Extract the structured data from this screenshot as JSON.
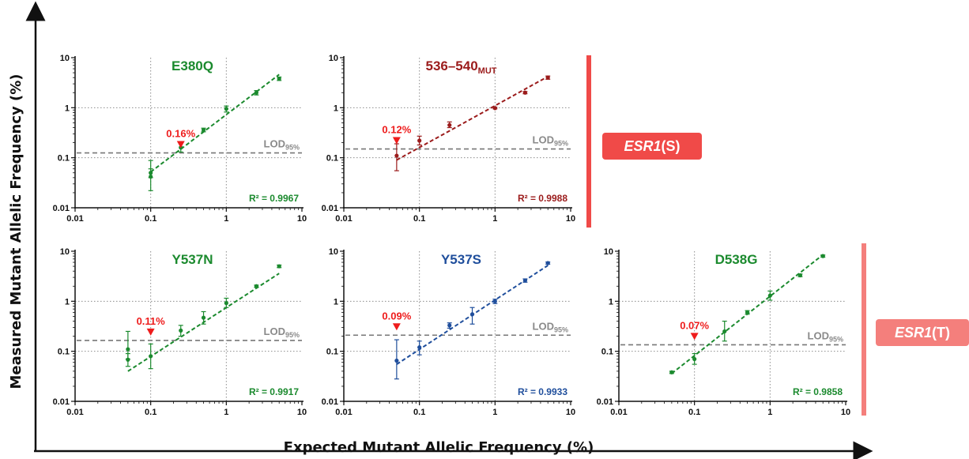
{
  "figure": {
    "y_axis_title": "Measured Mutant Allelic Frequency (%)",
    "x_axis_title": "Expected Mutant Allelic Frequency (%)",
    "groups": [
      {
        "gene": "ESR1",
        "suffix": "(S)",
        "color": "#f04a48"
      },
      {
        "gene": "ESR1",
        "suffix": "(T)",
        "color": "#f47f7c"
      }
    ]
  },
  "chart_data": [
    {
      "type": "scatter",
      "title": "E380Q",
      "title_sub": "",
      "color": "#1b8a2e",
      "xscale": "log",
      "yscale": "log",
      "xlim": [
        0.01,
        10
      ],
      "ylim": [
        0.01,
        10
      ],
      "xticks": [
        "0.01",
        "0.1",
        "1",
        "10"
      ],
      "yticks": [
        "0.01",
        "0.1",
        "1",
        "10"
      ],
      "grid": "dotted at 0.1 and 1",
      "points": [
        {
          "x": 0.1,
          "y": 0.042,
          "ylo": 0.022,
          "yhi": 0.06
        },
        {
          "x": 0.1,
          "y": 0.05,
          "ylo": 0.04,
          "yhi": 0.088
        },
        {
          "x": 0.25,
          "y": 0.16,
          "ylo": 0.13,
          "yhi": 0.2
        },
        {
          "x": 0.5,
          "y": 0.36,
          "ylo": 0.33,
          "yhi": 0.39
        },
        {
          "x": 1.0,
          "y": 0.95,
          "ylo": 0.82,
          "yhi": 1.08
        },
        {
          "x": 2.5,
          "y": 2.0,
          "ylo": 1.8,
          "yhi": 2.2
        },
        {
          "x": 5.0,
          "y": 3.8,
          "ylo": 3.5,
          "yhi": 4.1
        }
      ],
      "fit": [
        [
          0.1,
          0.052
        ],
        [
          5.0,
          4.6
        ]
      ],
      "lod": 0.125,
      "lod_label": "LOD",
      "lod_sub": "95%",
      "lod_annotation": "0.16%",
      "lod_x": 0.25,
      "r2": "R² = 0.9967"
    },
    {
      "type": "scatter",
      "title": "536–540",
      "title_sub": "MUT",
      "color": "#9b1b1b",
      "xscale": "log",
      "yscale": "log",
      "xlim": [
        0.01,
        10
      ],
      "ylim": [
        0.01,
        10
      ],
      "xticks": [
        "0.01",
        "0.1",
        "1",
        "10"
      ],
      "yticks": [
        "0.01",
        "0.1",
        "1",
        "10"
      ],
      "grid": "dotted at 0.1 and 1",
      "points": [
        {
          "x": 0.05,
          "y": 0.11,
          "ylo": 0.055,
          "yhi": 0.19
        },
        {
          "x": 0.1,
          "y": 0.22,
          "ylo": 0.18,
          "yhi": 0.27
        },
        {
          "x": 0.25,
          "y": 0.45,
          "ylo": 0.4,
          "yhi": 0.52
        },
        {
          "x": 1.0,
          "y": 0.98,
          "ylo": 0.95,
          "yhi": 1.02
        },
        {
          "x": 2.5,
          "y": 2.0,
          "ylo": 1.9,
          "yhi": 2.1
        },
        {
          "x": 5.0,
          "y": 4.0,
          "ylo": 3.7,
          "yhi": 4.3
        }
      ],
      "fit": [
        [
          0.05,
          0.09
        ],
        [
          5.0,
          4.2
        ]
      ],
      "lod": 0.15,
      "lod_label": "LOD",
      "lod_sub": "95%",
      "lod_annotation": "0.12%",
      "lod_x": 0.05,
      "r2": "R² = 0.9988"
    },
    {
      "type": "scatter",
      "title": "Y537N",
      "title_sub": "",
      "color": "#1b8a2e",
      "xscale": "log",
      "yscale": "log",
      "xlim": [
        0.01,
        10
      ],
      "ylim": [
        0.01,
        10
      ],
      "xticks": [
        "0.01",
        "0.1",
        "1",
        "10"
      ],
      "yticks": [
        "0.01",
        "0.1",
        "1",
        "10"
      ],
      "grid": "dotted at 0.1 and 1",
      "points": [
        {
          "x": 0.05,
          "y": 0.11,
          "ylo": 0.07,
          "yhi": 0.25
        },
        {
          "x": 0.05,
          "y": 0.068,
          "ylo": 0.05,
          "yhi": 0.09
        },
        {
          "x": 0.1,
          "y": 0.08,
          "ylo": 0.045,
          "yhi": 0.14
        },
        {
          "x": 0.25,
          "y": 0.26,
          "ylo": 0.2,
          "yhi": 0.33
        },
        {
          "x": 0.5,
          "y": 0.47,
          "ylo": 0.35,
          "yhi": 0.62
        },
        {
          "x": 1.0,
          "y": 0.92,
          "ylo": 0.75,
          "yhi": 1.15
        },
        {
          "x": 2.5,
          "y": 2.0,
          "ylo": 1.9,
          "yhi": 2.1
        },
        {
          "x": 5.0,
          "y": 5.0,
          "ylo": 4.7,
          "yhi": 5.3
        }
      ],
      "fit": [
        [
          0.05,
          0.04
        ],
        [
          5.0,
          3.6
        ]
      ],
      "lod": 0.165,
      "lod_label": "LOD",
      "lod_sub": "95%",
      "lod_annotation": "0.11%",
      "lod_x": 0.1,
      "r2": "R² = 0.9917"
    },
    {
      "type": "scatter",
      "title": "Y537S",
      "title_sub": "",
      "color": "#1f4e9c",
      "xscale": "log",
      "yscale": "log",
      "xlim": [
        0.01,
        10
      ],
      "ylim": [
        0.01,
        10
      ],
      "xticks": [
        "0.01",
        "0.1",
        "1",
        "10"
      ],
      "yticks": [
        "0.01",
        "0.1",
        "1",
        "10"
      ],
      "grid": "dotted at 0.1 and 1",
      "points": [
        {
          "x": 0.05,
          "y": 0.065,
          "ylo": 0.028,
          "yhi": 0.17
        },
        {
          "x": 0.1,
          "y": 0.12,
          "ylo": 0.085,
          "yhi": 0.16
        },
        {
          "x": 0.25,
          "y": 0.33,
          "ylo": 0.29,
          "yhi": 0.37
        },
        {
          "x": 0.5,
          "y": 0.55,
          "ylo": 0.35,
          "yhi": 0.75
        },
        {
          "x": 1.0,
          "y": 1.0,
          "ylo": 0.9,
          "yhi": 1.1
        },
        {
          "x": 2.5,
          "y": 2.6,
          "ylo": 2.4,
          "yhi": 2.8
        },
        {
          "x": 5.0,
          "y": 5.8,
          "ylo": 5.5,
          "yhi": 6.1
        }
      ],
      "fit": [
        [
          0.05,
          0.055
        ],
        [
          5.0,
          5.2
        ]
      ],
      "lod": 0.21,
      "lod_label": "LOD",
      "lod_sub": "95%",
      "lod_annotation": "0.09%",
      "lod_x": 0.05,
      "r2": "R² = 0.9933"
    },
    {
      "type": "scatter",
      "title": "D538G",
      "title_sub": "",
      "color": "#1b8a2e",
      "xscale": "log",
      "yscale": "log",
      "xlim": [
        0.01,
        10
      ],
      "ylim": [
        0.01,
        10
      ],
      "xticks": [
        "0.01",
        "0.1",
        "1",
        "10"
      ],
      "yticks": [
        "0.01",
        "0.1",
        "1",
        "10"
      ],
      "grid": "dotted at 0.1 and 1",
      "points": [
        {
          "x": 0.05,
          "y": 0.038,
          "ylo": 0.036,
          "yhi": 0.04
        },
        {
          "x": 0.1,
          "y": 0.07,
          "ylo": 0.055,
          "yhi": 0.09
        },
        {
          "x": 0.25,
          "y": 0.25,
          "ylo": 0.16,
          "yhi": 0.4
        },
        {
          "x": 0.5,
          "y": 0.6,
          "ylo": 0.55,
          "yhi": 0.65
        },
        {
          "x": 1.0,
          "y": 1.3,
          "ylo": 1.05,
          "yhi": 1.6
        },
        {
          "x": 2.5,
          "y": 3.3,
          "ylo": 3.1,
          "yhi": 3.5
        },
        {
          "x": 5.0,
          "y": 8.0,
          "ylo": 7.6,
          "yhi": 8.4
        }
      ],
      "fit": [
        [
          0.05,
          0.036
        ],
        [
          5.0,
          8.5
        ]
      ],
      "lod": 0.135,
      "lod_label": "LOD",
      "lod_sub": "95%",
      "lod_annotation": "0.07%",
      "lod_x": 0.1,
      "r2": "R² = 0.9858"
    }
  ]
}
